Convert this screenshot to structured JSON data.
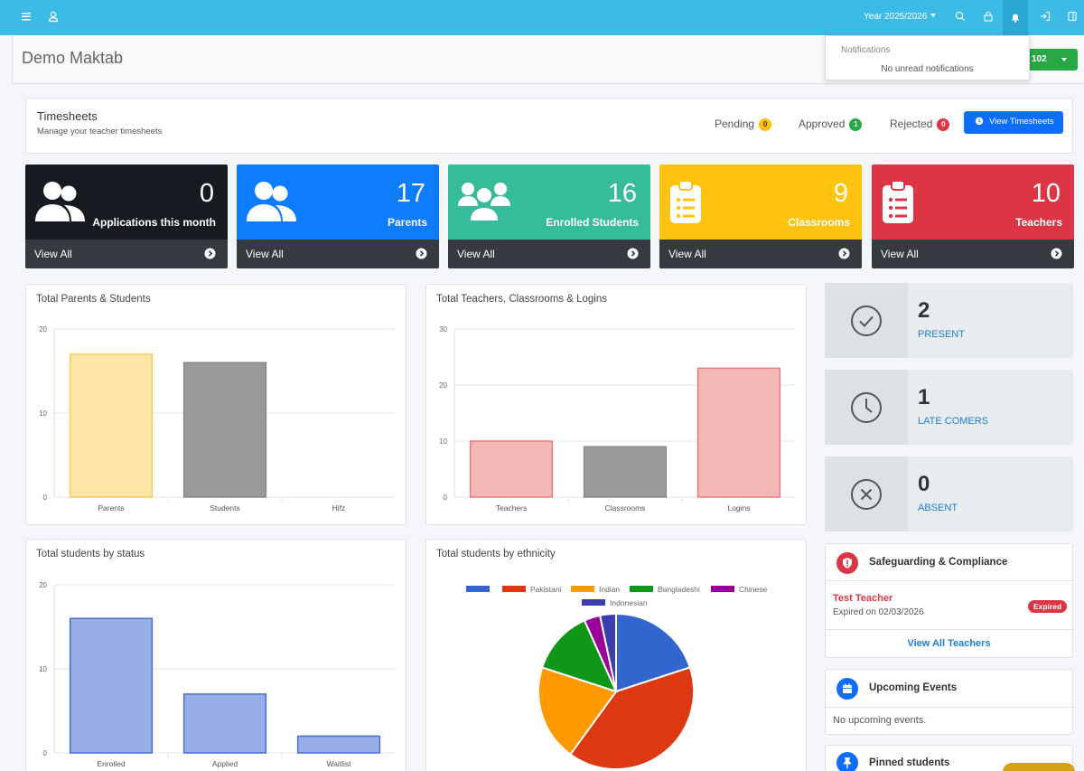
{
  "topbar": {
    "year_label": "Year 2025/2026"
  },
  "header": {
    "title": "Demo Maktab",
    "dropdown_label": "102"
  },
  "notifications": {
    "heading": "Notifications",
    "empty": "No unread notifications"
  },
  "timesheets": {
    "title": "Timesheets",
    "subtitle": "Manage your teacher timesheets",
    "pending_label": "Pending",
    "pending_count": "0",
    "approved_label": "Approved",
    "approved_count": "1",
    "rejected_label": "Rejected",
    "rejected_count": "0",
    "button_label": "View Timesheets"
  },
  "tiles": [
    {
      "value": "0",
      "label": "Applications this month",
      "link": "View All",
      "color": "#161b22"
    },
    {
      "value": "17",
      "label": "Parents",
      "link": "View All",
      "color": "#0d7cff"
    },
    {
      "value": "16",
      "label": "Enrolled Students",
      "link": "View All",
      "color": "#37bc9b"
    },
    {
      "value": "9",
      "label": "Classrooms",
      "link": "View All",
      "color": "#ffc30f"
    },
    {
      "value": "10",
      "label": "Teachers",
      "link": "View All",
      "color": "#dc3545"
    }
  ],
  "attendance": [
    {
      "value": "2",
      "label": "PRESENT",
      "icon": "check-circle-icon"
    },
    {
      "value": "1",
      "label": "LATE COMERS",
      "icon": "clock-icon"
    },
    {
      "value": "0",
      "label": "ABSENT",
      "icon": "x-circle-icon"
    }
  ],
  "safeguarding": {
    "title": "Safeguarding & Compliance",
    "teacher": "Test Teacher",
    "expiry": "Expired on 02/03/2026",
    "badge": "Expired",
    "link": "View All Teachers"
  },
  "events": {
    "title": "Upcoming Events",
    "empty": "No upcoming events."
  },
  "pinned": {
    "title": "Pinned students"
  },
  "chart_data": [
    {
      "type": "bar",
      "title": "Total Parents & Students",
      "categories": [
        "Parents",
        "Students",
        "Hifz"
      ],
      "values": [
        17,
        16,
        0
      ],
      "colors": [
        "#fde5a5",
        "#999999",
        "#999999"
      ],
      "borders": [
        "#f5cd5c",
        "#8a8a8a",
        "#8a8a8a"
      ],
      "yticks": [
        "0",
        "10",
        "20"
      ],
      "ylim": [
        0,
        20
      ]
    },
    {
      "type": "bar",
      "title": "Total Teachers, Classrooms & Logins",
      "categories": [
        "Teachers",
        "Classrooms",
        "Logins"
      ],
      "values": [
        10,
        9,
        23
      ],
      "colors": [
        "#f4b9b7",
        "#999999",
        "#f4b9b7"
      ],
      "borders": [
        "#ec7a7a",
        "#8a8a8a",
        "#ec7a7a"
      ],
      "yticks": [
        "0",
        "10",
        "20",
        "30"
      ],
      "ylim": [
        0,
        30
      ]
    },
    {
      "type": "bar",
      "title": "Total students by status",
      "categories": [
        "Enrolled",
        "Applied",
        "Waitlist"
      ],
      "values": [
        16,
        7,
        2
      ],
      "colors": [
        "#96ade6",
        "#96ade6",
        "#96ade6"
      ],
      "borders": [
        "#4a6fcf",
        "#4a6fcf",
        "#4a6fcf"
      ],
      "yticks": [
        "0",
        "10",
        "20"
      ],
      "ylim": [
        0,
        20
      ]
    },
    {
      "type": "pie",
      "title": "Total students by ethnicity",
      "legend": [
        {
          "name": "",
          "color": "#3366cc"
        },
        {
          "name": "Pakistani",
          "color": "#dc3912"
        },
        {
          "name": "Indian",
          "color": "#ff9900"
        },
        {
          "name": "Bangladeshi",
          "color": "#109618"
        },
        {
          "name": "Chinese",
          "color": "#990099"
        },
        {
          "name": "Indonesian",
          "color": "#3b3eac"
        }
      ],
      "values": [
        3,
        6,
        3,
        2,
        0.5,
        0.5
      ]
    }
  ]
}
